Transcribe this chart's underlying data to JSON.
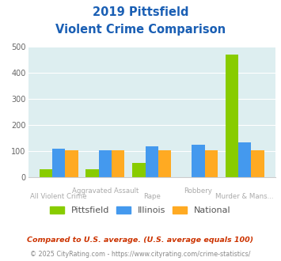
{
  "title_line1": "2019 Pittsfield",
  "title_line2": "Violent Crime Comparison",
  "categories": [
    "All Violent Crime",
    "Aggravated Assault",
    "Rape",
    "Robbery",
    "Murder & Mans..."
  ],
  "top_labels": [
    "",
    "Aggravated Assault",
    "",
    "Robbery",
    ""
  ],
  "bot_labels": [
    "All Violent Crime",
    "",
    "Rape",
    "",
    "Murder & Mans..."
  ],
  "pittsfield": [
    32,
    32,
    57,
    0,
    470
  ],
  "illinois": [
    110,
    103,
    118,
    125,
    135
  ],
  "national": [
    104,
    104,
    104,
    104,
    103
  ],
  "color_pittsfield": "#88cc00",
  "color_illinois": "#4499ee",
  "color_national": "#ffaa22",
  "ylim": [
    0,
    500
  ],
  "yticks": [
    0,
    100,
    200,
    300,
    400,
    500
  ],
  "footnote1": "Compared to U.S. average. (U.S. average equals 100)",
  "footnote2": "© 2025 CityRating.com - https://www.cityrating.com/crime-statistics/",
  "plot_bg": "#ddeef0",
  "fig_bg": "#ffffff",
  "title_color": "#1a5fb4",
  "label_color": "#aaaaaa",
  "footnote1_color": "#cc3300",
  "footnote2_color": "#888888"
}
